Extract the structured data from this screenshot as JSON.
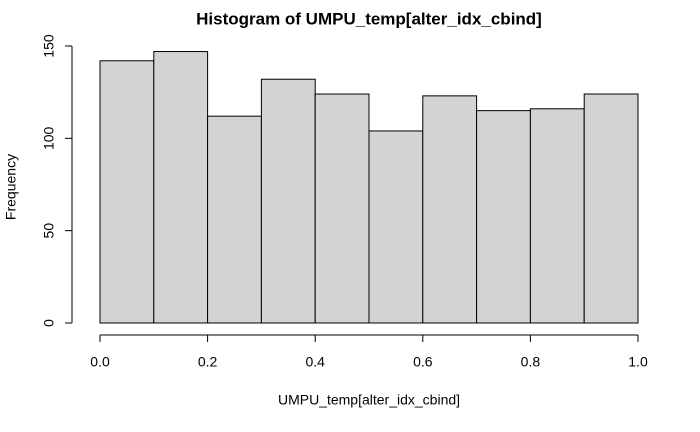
{
  "chart_data": {
    "type": "histogram",
    "title": "Histogram of UMPU_temp[alter_idx_cbind]",
    "xlabel": "UMPU_temp[alter_idx_cbind]",
    "ylabel": "Frequency",
    "bins": [
      0,
      0.1,
      0.2,
      0.3,
      0.4,
      0.5,
      0.6,
      0.7,
      0.8,
      0.9,
      1
    ],
    "values": [
      142,
      147,
      112,
      132,
      124,
      104,
      123,
      115,
      116,
      124
    ],
    "color": "#d3d3d3",
    "xlim": [
      0,
      1
    ],
    "xticks": [
      {
        "value": 0,
        "label": "0.0"
      },
      0.2,
      0.4,
      0.6,
      0.8,
      {
        "value": 1,
        "label": "1.0"
      }
    ],
    "ylim": [
      0,
      150
    ],
    "yticks": [
      0,
      50,
      100,
      150
    ],
    "grid": false
  }
}
